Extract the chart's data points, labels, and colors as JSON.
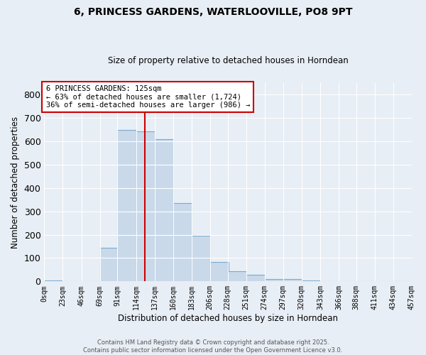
{
  "title": "6, PRINCESS GARDENS, WATERLOOVILLE, PO8 9PT",
  "subtitle": "Size of property relative to detached houses in Horndean",
  "xlabel": "Distribution of detached houses by size in Horndean",
  "ylabel": "Number of detached properties",
  "bins": [
    0,
    23,
    46,
    69,
    91,
    114,
    137,
    160,
    183,
    206,
    228,
    251,
    274,
    297,
    320,
    343,
    366,
    388,
    411,
    434,
    457
  ],
  "values": [
    5,
    0,
    0,
    145,
    648,
    642,
    610,
    335,
    197,
    83,
    44,
    27,
    10,
    10,
    5,
    0,
    2,
    0,
    0,
    0
  ],
  "bar_color": "#c9d9ea",
  "bar_edge_color": "#7aaad0",
  "vline_x": 125,
  "vline_color": "#cc0000",
  "annotation_text": "6 PRINCESS GARDENS: 125sqm\n← 63% of detached houses are smaller (1,724)\n36% of semi-detached houses are larger (986) →",
  "annotation_box_color": "#ffffff",
  "annotation_box_edge": "#cc0000",
  "ylim": [
    0,
    850
  ],
  "yticks": [
    0,
    100,
    200,
    300,
    400,
    500,
    600,
    700,
    800
  ],
  "tick_labels": [
    "0sqm",
    "23sqm",
    "46sqm",
    "69sqm",
    "91sqm",
    "114sqm",
    "137sqm",
    "160sqm",
    "183sqm",
    "206sqm",
    "228sqm",
    "251sqm",
    "274sqm",
    "297sqm",
    "320sqm",
    "343sqm",
    "366sqm",
    "388sqm",
    "411sqm",
    "434sqm",
    "457sqm"
  ],
  "background_color": "#e8eef5",
  "grid_color": "#ffffff",
  "footer_line1": "Contains HM Land Registry data © Crown copyright and database right 2025.",
  "footer_line2": "Contains public sector information licensed under the Open Government Licence v3.0."
}
